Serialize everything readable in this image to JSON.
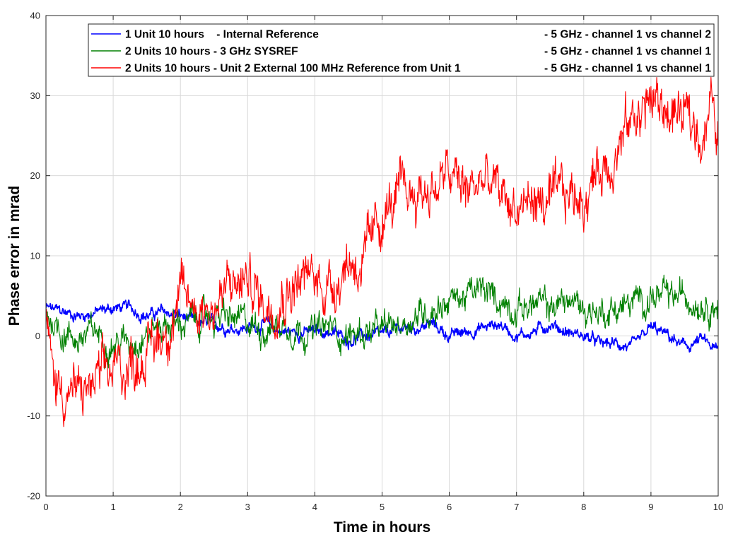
{
  "chart_data": {
    "type": "line",
    "xlabel": "Time in hours",
    "ylabel": "Phase error in mrad",
    "xlim": [
      0,
      10
    ],
    "ylim": [
      -20,
      40
    ],
    "xticks": [
      "0",
      "1",
      "2",
      "3",
      "4",
      "5",
      "6",
      "7",
      "8",
      "9",
      "10"
    ],
    "yticks": [
      "-20",
      "-10",
      "0",
      "10",
      "20",
      "30",
      "40"
    ],
    "grid": true,
    "legend_position": "top-right",
    "series": [
      {
        "name": "1 Unit 10 hours    - Internal Reference",
        "suffix": "- 5 GHz - channel 1 vs channel 2",
        "color": "#0000ff",
        "x": [
          0,
          0.25,
          0.5,
          0.75,
          1.0,
          1.25,
          1.5,
          1.75,
          2.0,
          2.25,
          2.5,
          2.75,
          3.0,
          3.25,
          3.5,
          3.75,
          4.0,
          4.25,
          4.5,
          4.75,
          5.0,
          5.25,
          5.5,
          5.75,
          6.0,
          6.25,
          6.5,
          6.75,
          7.0,
          7.25,
          7.5,
          7.75,
          8.0,
          8.25,
          8.5,
          8.75,
          9.0,
          9.25,
          9.5,
          9.75,
          10.0
        ],
        "y": [
          3.5,
          3.0,
          2.5,
          3.0,
          3.5,
          3.5,
          2.5,
          3.0,
          2.5,
          1.5,
          1.5,
          1.0,
          1.0,
          1.5,
          0.5,
          0.5,
          0.5,
          0.5,
          -0.5,
          0.0,
          0.0,
          1.0,
          1.0,
          1.5,
          0.0,
          0.5,
          1.0,
          1.5,
          0.0,
          0.5,
          1.5,
          0.5,
          0.0,
          -1.0,
          -1.0,
          -1.5,
          1.0,
          0.0,
          -1.5,
          -0.5,
          -2.0
        ],
        "noise": 0.8
      },
      {
        "name": "2 Units 10 hours - 3 GHz SYSREF",
        "suffix": "- 5 GHz - channel 1 vs channel 1",
        "color": "#008000",
        "x": [
          0,
          0.25,
          0.5,
          0.75,
          1.0,
          1.25,
          1.5,
          1.75,
          2.0,
          2.25,
          2.5,
          2.75,
          3.0,
          3.25,
          3.5,
          3.75,
          4.0,
          4.25,
          4.5,
          4.75,
          5.0,
          5.25,
          5.5,
          5.75,
          6.0,
          6.25,
          6.5,
          6.75,
          7.0,
          7.25,
          7.5,
          7.75,
          8.0,
          8.25,
          8.5,
          8.75,
          9.0,
          9.25,
          9.5,
          9.75,
          10.0
        ],
        "y": [
          3.0,
          0.5,
          -0.5,
          0.5,
          -1.0,
          -0.5,
          0.5,
          1.5,
          1.5,
          2.0,
          2.5,
          2.0,
          1.5,
          1.0,
          1.5,
          1.0,
          0.5,
          1.0,
          0.0,
          0.5,
          0.5,
          1.5,
          2.5,
          3.5,
          4.5,
          5.0,
          5.5,
          4.5,
          3.5,
          4.0,
          3.5,
          4.5,
          3.5,
          3.0,
          3.5,
          4.0,
          5.0,
          4.5,
          5.0,
          4.5,
          4.0
        ],
        "noise": 2.0
      },
      {
        "name": "2 Units 10 hours - Unit 2 External 100 MHz Reference from Unit 1",
        "suffix": "- 5 GHz - channel 1 vs channel 1",
        "color": "#ff0000",
        "x": [
          0,
          0.1,
          0.25,
          0.5,
          0.75,
          1.0,
          1.25,
          1.5,
          1.75,
          2.0,
          2.25,
          2.5,
          2.75,
          3.0,
          3.25,
          3.5,
          3.75,
          4.0,
          4.25,
          4.5,
          4.75,
          5.0,
          5.25,
          5.5,
          5.75,
          6.0,
          6.25,
          6.5,
          6.75,
          7.0,
          7.25,
          7.5,
          7.75,
          8.0,
          8.25,
          8.5,
          8.75,
          9.0,
          9.25,
          9.5,
          9.75,
          9.9,
          10.0
        ],
        "y": [
          2.0,
          -5.0,
          -6.5,
          -7.5,
          -6.0,
          -4.5,
          -3.5,
          -2.0,
          0.5,
          4.5,
          4.0,
          3.5,
          6.0,
          7.0,
          4.0,
          5.5,
          7.0,
          7.0,
          6.5,
          9.5,
          9.0,
          15.0,
          17.0,
          18.0,
          18.5,
          20.0,
          18.0,
          19.5,
          17.5,
          16.0,
          17.0,
          16.0,
          17.5,
          17.5,
          21.0,
          23.5,
          27.5,
          29.5,
          28.0,
          27.0,
          25.5,
          29.0,
          24.0
        ],
        "noise": 3.5
      }
    ]
  }
}
